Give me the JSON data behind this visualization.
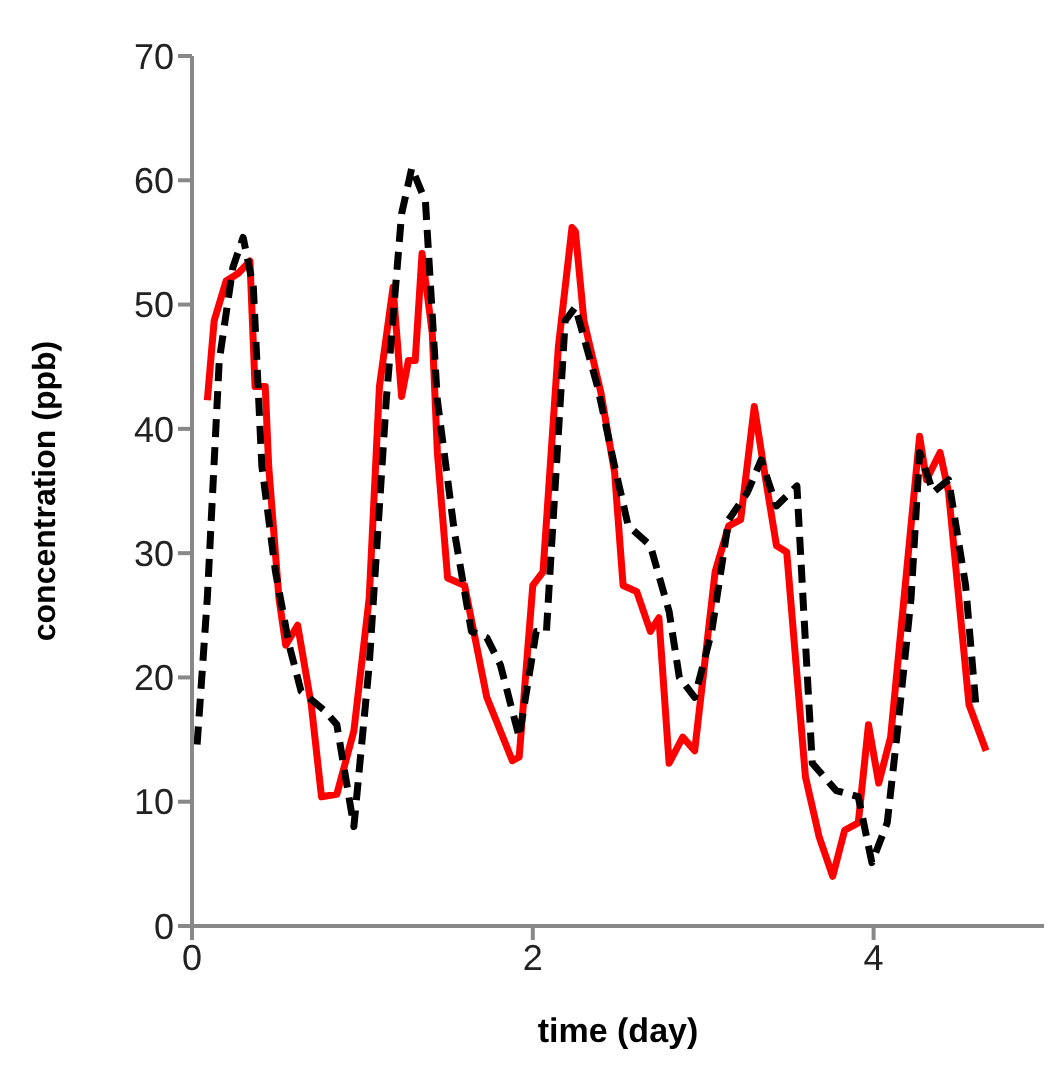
{
  "chart_data": {
    "type": "line",
    "xlabel": "time (day)",
    "ylabel": "concentration (ppb)",
    "xlim": [
      0,
      5
    ],
    "xticks": [
      0,
      2,
      4
    ],
    "ylim": [
      0,
      70
    ],
    "yticks": [
      0,
      10,
      20,
      30,
      40,
      50,
      60,
      70
    ],
    "grid": false,
    "marker": "none",
    "series": [
      {
        "color": "#ff0000",
        "line_style": "solid",
        "x": [
          0.09,
          0.13,
          0.2,
          0.27,
          0.34,
          0.37,
          0.43,
          0.45,
          0.51,
          0.55,
          0.62,
          0.66,
          0.7,
          0.76,
          0.85,
          0.95,
          1.04,
          1.1,
          1.18,
          1.23,
          1.27,
          1.31,
          1.35,
          1.41,
          1.44,
          1.5,
          1.6,
          1.73,
          1.88,
          1.92,
          2.0,
          2.06,
          2.15,
          2.23,
          2.25,
          2.3,
          2.4,
          2.48,
          2.53,
          2.61,
          2.69,
          2.74,
          2.8,
          2.88,
          2.95,
          3.07,
          3.15,
          3.22,
          3.3,
          3.36,
          3.43,
          3.49,
          3.6,
          3.68,
          3.76,
          3.83,
          3.91,
          3.97,
          4.03,
          4.1,
          4.27,
          4.31,
          4.39,
          4.44,
          4.56,
          4.66
        ],
        "values": [
          42.3,
          48.7,
          51.9,
          52.5,
          53.5,
          43.4,
          43.4,
          37,
          26.4,
          22.6,
          24.2,
          21,
          17.8,
          10.4,
          10.6,
          15.7,
          26.4,
          43.4,
          51.4,
          42.6,
          45.5,
          45.5,
          54.1,
          47.7,
          38.1,
          28,
          27.4,
          18.4,
          13.3,
          13.6,
          27.4,
          28.5,
          46.6,
          56.2,
          55.9,
          48.7,
          42.9,
          36.5,
          27.4,
          26.9,
          23.7,
          24.8,
          13.1,
          15.2,
          14.1,
          28.5,
          32.2,
          32.7,
          41.8,
          36.5,
          30.6,
          30.1,
          12,
          7.2,
          4,
          7.7,
          8.3,
          16.2,
          11.5,
          15.2,
          39.4,
          35.9,
          38.1,
          34.9,
          17.8,
          14.1
        ]
      },
      {
        "color": "#000000",
        "line_style": "dashed",
        "x": [
          0.03,
          0.09,
          0.16,
          0.24,
          0.3,
          0.36,
          0.41,
          0.49,
          0.57,
          0.64,
          0.78,
          0.85,
          0.95,
          1.04,
          1.14,
          1.23,
          1.29,
          1.37,
          1.44,
          1.54,
          1.64,
          1.73,
          1.81,
          1.92,
          2.02,
          2.08,
          2.19,
          2.25,
          2.38,
          2.48,
          2.56,
          2.69,
          2.8,
          2.86,
          2.95,
          3.05,
          3.15,
          3.26,
          3.34,
          3.43,
          3.55,
          3.59,
          3.64,
          3.78,
          3.91,
          3.99,
          4.08,
          4.14,
          4.22,
          4.27,
          4.35,
          4.44,
          4.54,
          4.6
        ],
        "values": [
          14.6,
          26.4,
          45.5,
          53,
          55.4,
          51.4,
          37,
          28.5,
          22.6,
          18.9,
          17.3,
          16.2,
          8,
          21,
          42.3,
          57.3,
          61,
          58.3,
          42.3,
          31.7,
          23.7,
          23.2,
          21,
          15.2,
          23.7,
          23.7,
          48.7,
          49.8,
          43.4,
          37,
          32.2,
          30.6,
          25.3,
          20,
          18.4,
          23.7,
          32.7,
          34.9,
          37.5,
          33.8,
          35.4,
          25.3,
          13.1,
          10.9,
          10.4,
          5.1,
          8.3,
          15.7,
          26.4,
          38.1,
          34.9,
          35.9,
          27.4,
          17.8
        ]
      }
    ]
  }
}
